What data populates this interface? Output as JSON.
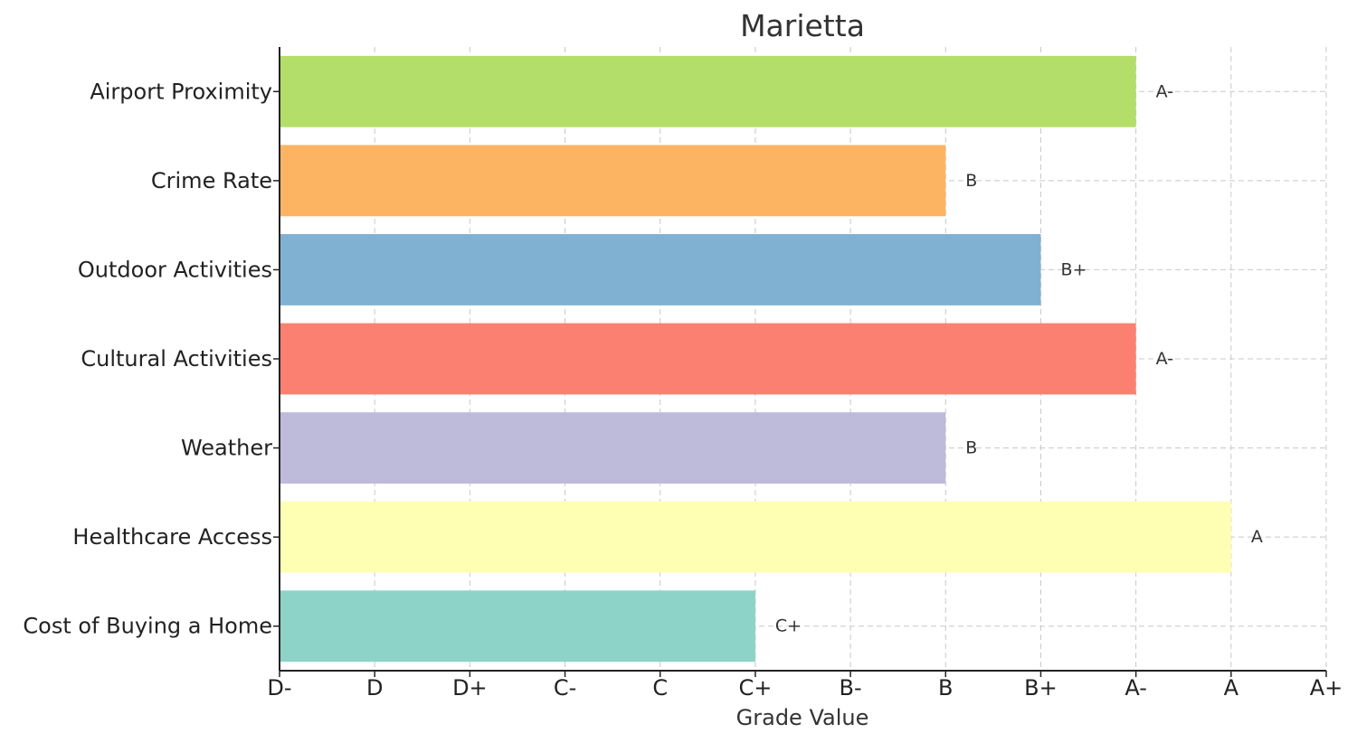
{
  "chart_data": {
    "type": "bar",
    "orientation": "horizontal",
    "title": "Marietta",
    "xlabel": "Grade Value",
    "ylabel": "",
    "grade_scale": [
      "D-",
      "D",
      "D+",
      "C-",
      "C",
      "C+",
      "B-",
      "B",
      "B+",
      "A-",
      "A",
      "A+"
    ],
    "xlim": [
      0,
      11
    ],
    "grid": true,
    "categories": [
      "Cost of Buying a Home",
      "Healthcare Access",
      "Weather",
      "Cultural Activities",
      "Outdoor Activities",
      "Crime Rate",
      "Airport Proximity"
    ],
    "values": [
      5,
      10,
      7,
      9,
      8,
      7,
      9
    ],
    "value_labels": [
      "C+",
      "A",
      "B",
      "A-",
      "B+",
      "B",
      "A-"
    ],
    "colors": [
      "#8dd3c7",
      "#ffffb3",
      "#bebada",
      "#fb8072",
      "#80b1d3",
      "#fdb462",
      "#b3de69"
    ]
  }
}
